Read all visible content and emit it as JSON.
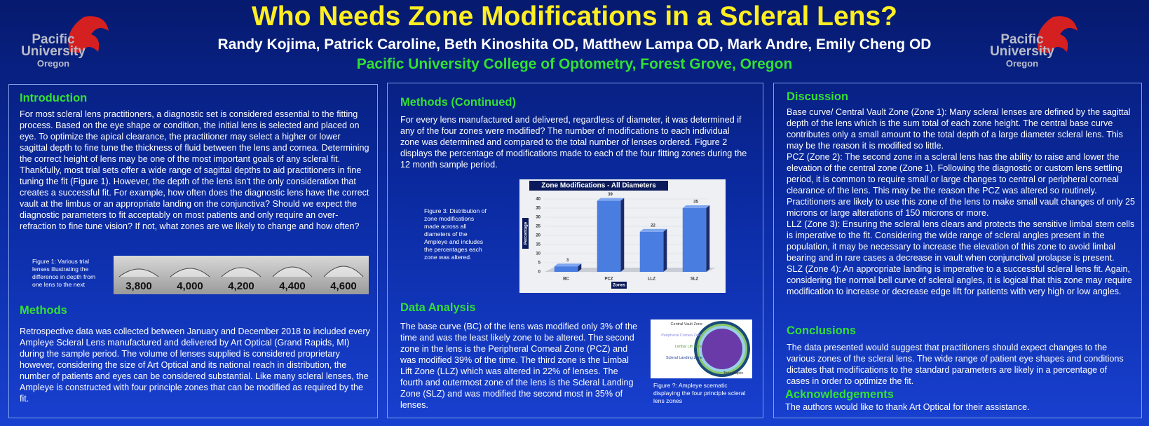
{
  "header": {
    "title": "Who Needs Zone Modifications in a Scleral Lens?",
    "authors": "Randy Kojima, Patrick Caroline, Beth Kinoshita OD, Matthew Lampa OD, Mark Andre, Emily Cheng OD",
    "affiliation": "Pacific University College of Optometry, Forest Grove, Oregon",
    "logo": [
      "Pacific",
      "University",
      "Oregon"
    ]
  },
  "introduction": {
    "heading": "Introduction",
    "text": "For most scleral lens practitioners, a diagnostic set is considered essential to the fitting process.  Based on the eye shape or condition, the initial lens is selected and placed on eye.  To optimize the apical clearance, the practitioner may select a higher or lower sagittal depth to fine tune the thickness of fluid between the lens and cornea.  Determining the correct height of lens may be one of the most important goals of any scleral fit.  Thankfully, most trial sets offer a wide range of sagittal depths to aid practitioners in fine tuning the fit (Figure 1).  However, the depth of the lens isn't the only consideration that creates a successful fit.  For example, how often does the diagnostic lens have the correct vault at the limbus or an appropriate landing on the conjunctiva?  Should we expect the diagnostic parameters to fit acceptably on most patients and only require an over-refraction to fine tune vision?  If not, what zones are we likely to change and how often?"
  },
  "figure1": {
    "caption": "Figure 1: Various trial lenses illustrating the difference in depth from one lens to the next",
    "labels": [
      "3,800",
      "4,000",
      "4,200",
      "4,400",
      "4,600"
    ]
  },
  "methods": {
    "heading": "Methods",
    "text": "Retrospective data was collected between January and December 2018 to included every Ampleye Scleral Lens manufactured and delivered by Art Optical (Grand Rapids, MI) during the sample period.  The volume of lenses supplied is considered proprietary however, considering the size of Art Optical and its national reach in distribution, the number of patients and eyes can be considered substantial.  Like many scleral lenses, the Ampleye is constructed with four principle zones that can be modified as required by the fit."
  },
  "methods_continued": {
    "heading": "Methods (Continued)",
    "text": "For every lens manufactured and delivered, regardless of diameter, it was determined if any of the four zones were modified?   The number of modifications to each individual zone was determined and compared to the total number of lenses ordered.  Figure 2 displays the percentage of modifications made to each of the four fitting zones during the 12 month sample period."
  },
  "figure3": {
    "caption": "Figure 3: Distribution of zone modifications made across all diameters of the Ampleye and includes the percentages each zone was altered."
  },
  "chart_data": {
    "type": "bar",
    "title": "Zone Modifications - All Diameters",
    "categories": [
      "BC",
      "PCZ",
      "LLZ",
      "SLZ"
    ],
    "values": [
      3,
      39,
      22,
      35
    ],
    "color": "#4a7de0",
    "ylim": [
      0,
      40
    ],
    "yticks": [
      0,
      5,
      10,
      15,
      20,
      25,
      30,
      35,
      40
    ],
    "y_label": "Percentage",
    "x_label": "Zones"
  },
  "data_analysis": {
    "heading": "Data Analysis",
    "text": "The base curve (BC) of the lens was modified only 3% of the time and was the least likely zone to be altered.  The second zone in the lens is the Peripheral Corneal Zone (PCZ) and was modified 39% of the time.  The third zone is the Limbal Lift Zone (LLZ) which was altered in 22% of lenses.  The fourth and outermost zone of the lens is the Scleral Landing Zone (SLZ) and was modified the second most in 35% of lenses."
  },
  "schematic": {
    "labels": [
      "Central Vault Zone",
      "Peripheral Cornea Zone",
      "Limbal Lift Zone",
      "Scleral Landing Zone",
      "Toric Haptic"
    ],
    "caption": "Figure ?: Ampleye scematic displaying the four principle scleral lens zones"
  },
  "discussion": {
    "heading": "Discussion",
    "paragraphs": [
      "Base curve/ Central Vault Zone (Zone 1):  Many scleral lenses are defined by the sagittal depth of the lens which is the sum total of each zone height.  The central base curve contributes only a small amount to the total depth of a large diameter scleral lens.  This may be the reason it is modified so little.",
      "PCZ (Zone 2): The second zone in a scleral lens has the ability to raise and lower the elevation of the central zone (Zone 1).  Following the diagnostic or custom lens settling period, it is common to require small or large changes to central or peripheral corneal clearance of the lens.  This may be the reason the PCZ was altered so routinely.  Practitioners are likely to use this zone of the lens to make small vault changes of only 25 microns or large alterations of 150 microns or more.",
      "LLZ (Zone 3): Ensuring the scleral lens clears and protects the sensitive limbal stem cells is imperative to the fit.  Considering the wide range of scleral angles present in the population, it may be necessary to increase the elevation of this zone to avoid limbal bearing and in rare cases a decrease in vault when conjunctival prolapse is present.",
      "SLZ (Zone 4): An appropriate landing is imperative to a successful scleral lens fit.  Again, considering the normal bell curve of scleral angles, it is logical that this zone may require modification to increase or decrease edge lift for patients with very high or low angles."
    ]
  },
  "conclusions": {
    "heading": "Conclusions",
    "text": "The data presented would suggest that practitioners should expect changes to the various zones of the scleral lens.  The wide range of patient eye shapes and conditions dictates that modifications to the standard parameters are likely in a percentage of cases in order to optimize the fit."
  },
  "acknowledgements": {
    "heading": "Acknowledgements",
    "text": "The authors would like to thank Art Optical for their assistance."
  }
}
